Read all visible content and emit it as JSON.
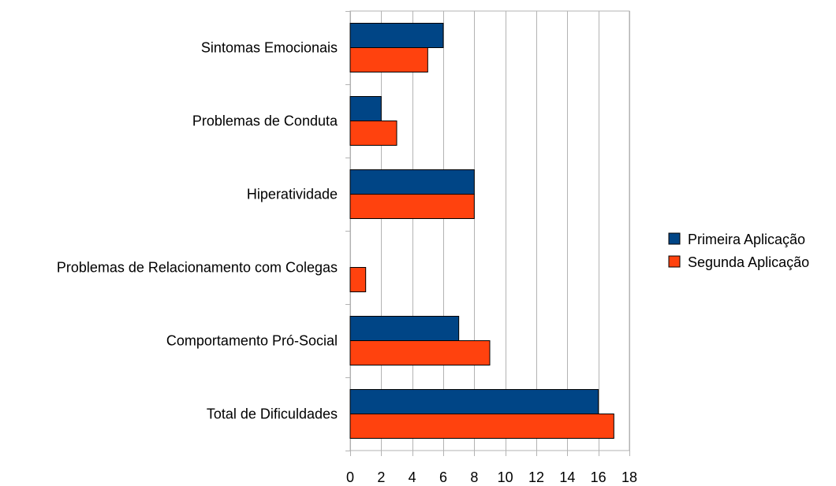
{
  "chart_data": {
    "type": "bar",
    "orientation": "horizontal",
    "categories": [
      "Sintomas Emocionais",
      "Problemas de Conduta",
      "Hiperatividade",
      "Problemas de Relacionamento com Colegas",
      "Comportamento Pró-Social",
      "Total de Dificuldades"
    ],
    "series": [
      {
        "name": "Primeira Aplicação",
        "color": "#004586",
        "values": [
          6,
          2,
          8,
          0,
          7,
          16
        ]
      },
      {
        "name": "Segunda Aplicação",
        "color": "#ff420e",
        "values": [
          5,
          3,
          8,
          1,
          9,
          17
        ]
      }
    ],
    "xticks": [
      "0",
      "2",
      "4",
      "6",
      "8",
      "10",
      "12",
      "14",
      "16",
      "18"
    ],
    "xlim": [
      0,
      18
    ],
    "grid": true,
    "legend_position": "right"
  }
}
